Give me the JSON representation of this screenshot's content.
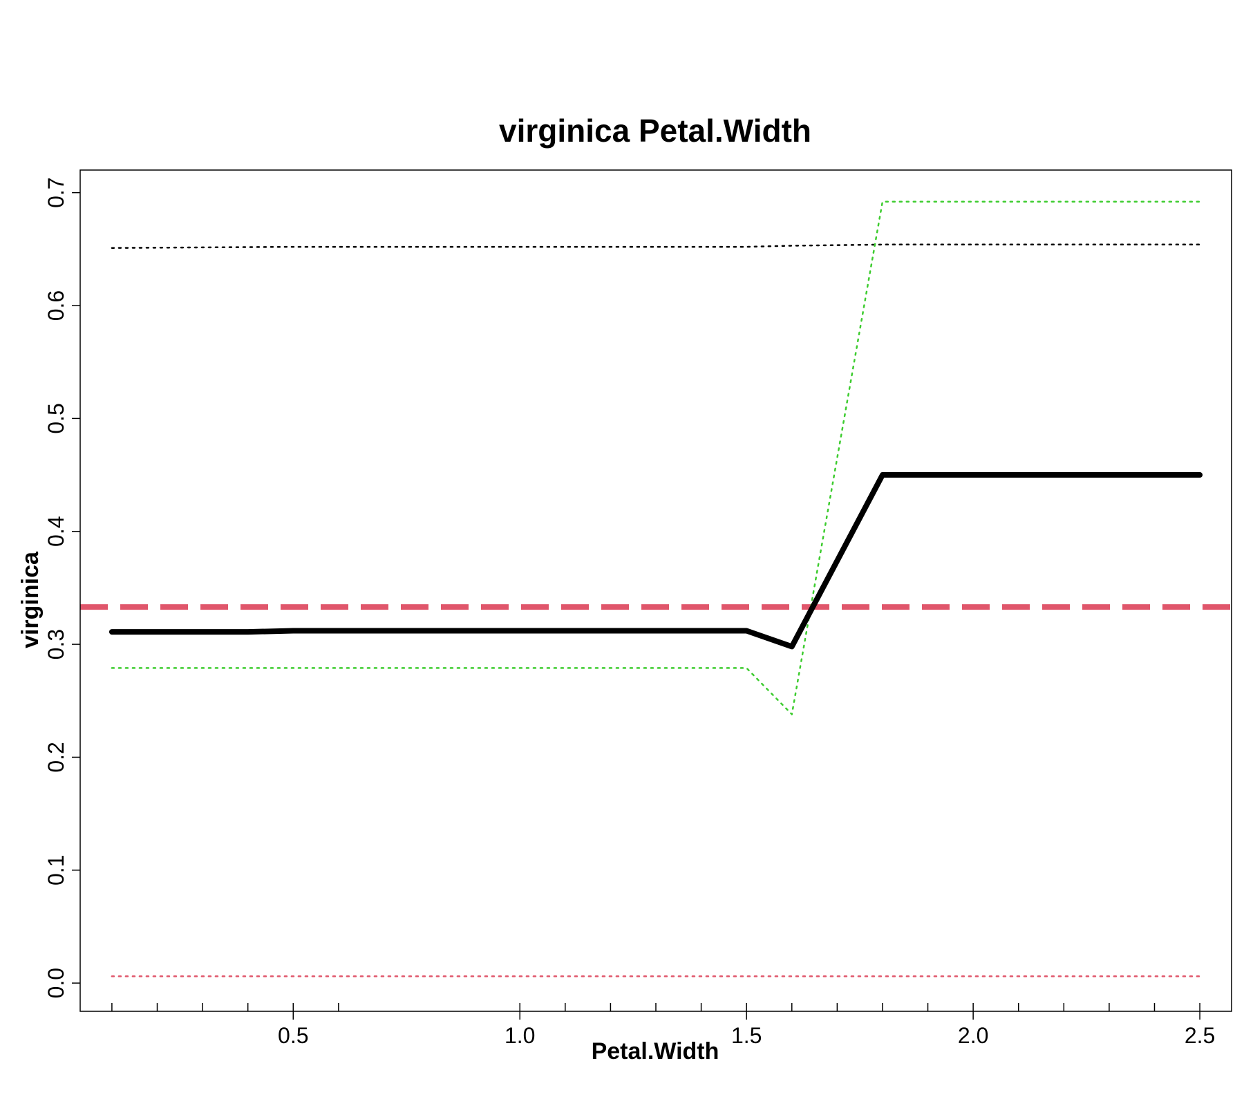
{
  "chart_data": {
    "type": "line",
    "title": "virginica  Petal.Width",
    "xlabel": "Petal.Width",
    "ylabel": "virginica",
    "xlim": [
      0.03,
      2.57
    ],
    "ylim": [
      -0.025,
      0.72
    ],
    "x_ticks": [
      0.5,
      1.0,
      1.5,
      2.0,
      2.5
    ],
    "x_tick_labels": [
      "0.5",
      "1.0",
      "1.5",
      "2.0",
      "2.5"
    ],
    "y_ticks": [
      0.0,
      0.1,
      0.2,
      0.3,
      0.4,
      0.5,
      0.6,
      0.7
    ],
    "y_tick_labels": [
      "0.0",
      "0.1",
      "0.2",
      "0.3",
      "0.4",
      "0.5",
      "0.6",
      "0.7"
    ],
    "grid": false,
    "legend": "none",
    "x_rug_ticks": [
      0.1,
      0.2,
      0.3,
      0.4,
      0.5,
      0.6,
      1.0,
      1.1,
      1.2,
      1.3,
      1.4,
      1.5,
      1.6,
      1.7,
      1.8,
      1.9,
      2.0,
      2.1,
      2.2,
      2.3,
      2.4,
      2.5
    ],
    "series": [
      {
        "style": "solid",
        "color": "#000000",
        "width": 8,
        "x": [
          0.1,
          0.4,
          0.5,
          1.0,
          1.5,
          1.6,
          1.8,
          2.0,
          2.5
        ],
        "y": [
          0.311,
          0.311,
          0.312,
          0.312,
          0.312,
          0.298,
          0.45,
          0.45,
          0.45
        ]
      },
      {
        "style": "dotted",
        "color": "#000000",
        "width": 2.5,
        "x": [
          0.1,
          0.5,
          1.0,
          1.5,
          1.6,
          1.8,
          2.0,
          2.5
        ],
        "y": [
          0.651,
          0.652,
          0.652,
          0.652,
          0.653,
          0.654,
          0.654,
          0.654
        ]
      },
      {
        "style": "dotted",
        "color": "#3dcc2f",
        "width": 2.5,
        "x": [
          0.1,
          0.5,
          1.0,
          1.5,
          1.6,
          1.8,
          2.0,
          2.5
        ],
        "y": [
          0.279,
          0.279,
          0.279,
          0.279,
          0.238,
          0.692,
          0.692,
          0.692
        ]
      },
      {
        "style": "dotted",
        "color": "#e0566b",
        "width": 2.5,
        "x": [
          0.1,
          2.5
        ],
        "y": [
          0.006,
          0.006
        ]
      }
    ],
    "reference_line": {
      "style": "dashed",
      "color": "#e0566b",
      "width": 8,
      "y": 0.333
    }
  }
}
